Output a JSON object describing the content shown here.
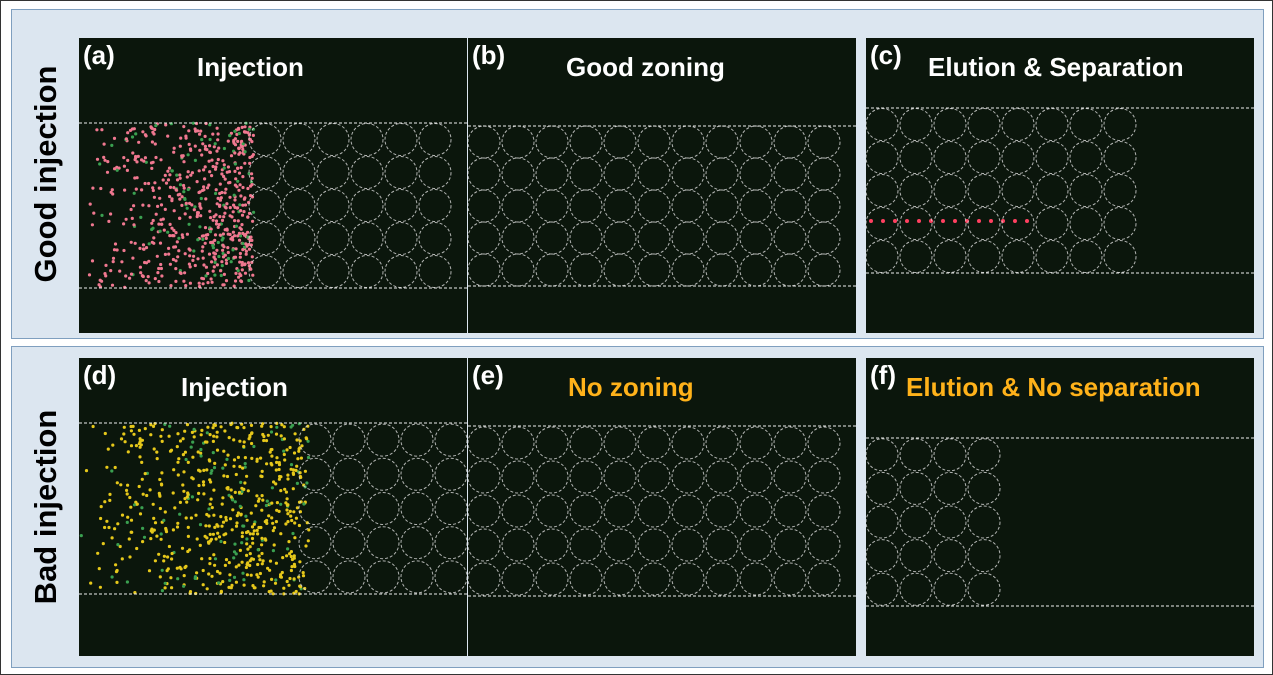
{
  "rows": [
    {
      "label": "Good injection",
      "panels": [
        {
          "letter": "(a)",
          "title": "Injection"
        },
        {
          "letter": "(b)",
          "title": "Good zoning"
        },
        {
          "letter": "(c)",
          "title": "Elution & Separation"
        }
      ]
    },
    {
      "label": "Bad injection",
      "panels": [
        {
          "letter": "(d)",
          "title": "Injection"
        },
        {
          "letter": "(e)",
          "title": "No zoning"
        },
        {
          "letter": "(f)",
          "title": "Elution & No separation"
        }
      ]
    }
  ]
}
